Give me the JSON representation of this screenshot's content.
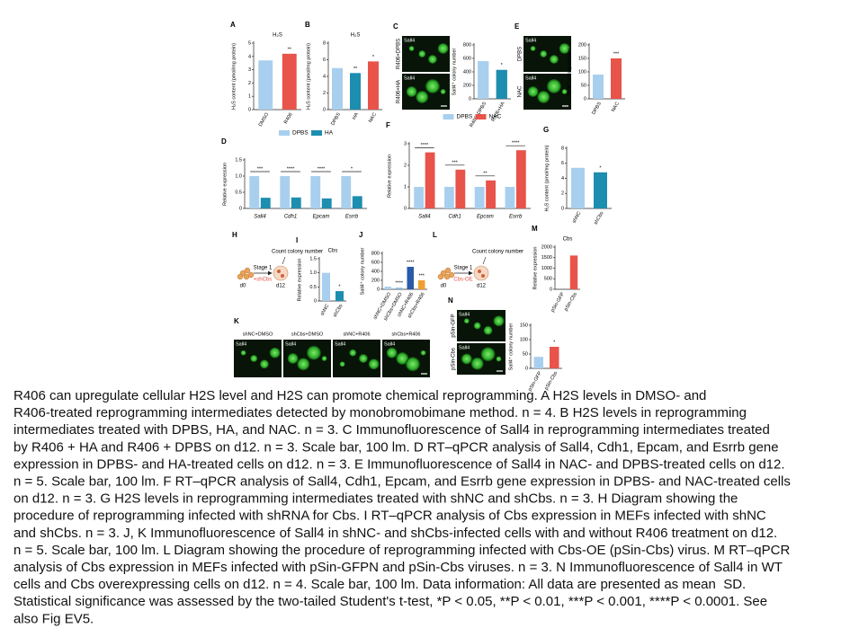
{
  "figure": {
    "panels": [
      {
        "kind": "bar",
        "letter": "A",
        "title": "H₂S",
        "ylabel": "H₂S content (pmol/mg protein)",
        "categories": [
          "DMSO",
          "R406"
        ],
        "values": [
          3.7,
          4.2
        ],
        "colors": [
          "#a9cfee",
          "#e8534a"
        ],
        "ylim": [
          0,
          5
        ],
        "yticks": [
          0,
          1,
          2,
          3,
          4,
          5
        ],
        "sig": [
          null,
          "**"
        ]
      },
      {
        "kind": "bar",
        "letter": "B",
        "title": "H₂S",
        "ylabel": "H₂S content (pmol/mg protein)",
        "categories": [
          "DPBS",
          "HA",
          "NAC"
        ],
        "values": [
          5.0,
          4.4,
          5.8
        ],
        "colors": [
          "#a9cfee",
          "#1d8db0",
          "#e8534a"
        ],
        "ylim": [
          0,
          8
        ],
        "yticks": [
          0,
          2,
          4,
          6,
          8
        ],
        "sig": [
          null,
          "**",
          "*"
        ]
      },
      {
        "kind": "images",
        "letter": "C",
        "images": [
          {
            "label": "R406+DPBS",
            "tag": "Sall4"
          },
          {
            "label": "R406+HA",
            "tag": "Sall4"
          }
        ]
      },
      {
        "kind": "bar",
        "ylabel": "Sall4⁺ colony number",
        "categories": [
          "R406+DPBS",
          "R406+HA"
        ],
        "values": [
          560,
          430
        ],
        "colors": [
          "#a9cfee",
          "#1d8db0"
        ],
        "ylim": [
          0,
          800
        ],
        "yticks": [
          0,
          200,
          400,
          600,
          800
        ],
        "sig": [
          null,
          "*"
        ]
      },
      {
        "kind": "images",
        "letter": "E",
        "images": [
          {
            "label": "DPBS",
            "tag": "Sall4"
          },
          {
            "label": "NAC",
            "tag": "Sall4"
          }
        ]
      },
      {
        "kind": "bar",
        "ylabel": "Sall4⁺ colony number",
        "categories": [
          "DPBS",
          "NAC"
        ],
        "values": [
          90,
          150
        ],
        "colors": [
          "#a9cfee",
          "#e8534a"
        ],
        "ylim": [
          0,
          200
        ],
        "yticks": [
          0,
          50,
          100,
          150,
          200
        ],
        "sig": [
          null,
          "***"
        ]
      },
      {
        "kind": "bar",
        "letter": "D",
        "ylabel": "Relative expression",
        "categories": [
          "Sall4",
          "Cdh1",
          "Epcam",
          "Esrrb"
        ],
        "series": [
          {
            "name": "DPBS",
            "color": "#a9cfee",
            "values": [
              1,
              1,
              1,
              1
            ]
          },
          {
            "name": "HA",
            "color": "#1d8db0",
            "values": [
              0.33,
              0.34,
              0.31,
              0.38
            ]
          }
        ],
        "ylim": [
          0,
          1.5
        ],
        "yticks": [
          0,
          0.5,
          {
            "value": 1,
            "label": "1.0"
          },
          1.5
        ],
        "sig": [
          "***",
          "****",
          "****",
          "*"
        ]
      },
      {
        "kind": "bar",
        "letter": "F",
        "ylabel": "Relative expression",
        "categories": [
          "Sall4",
          "Cdh1",
          "Epcam",
          "Esrrb"
        ],
        "series": [
          {
            "name": "DPBS",
            "color": "#a9cfee",
            "values": [
              1,
              1,
              1,
              1
            ]
          },
          {
            "name": "NAC",
            "color": "#e8534a",
            "values": [
              2.6,
              1.8,
              1.3,
              2.7
            ]
          }
        ],
        "ylim": [
          0,
          3
        ],
        "yticks": [
          0,
          1,
          2,
          3
        ],
        "sig": [
          "****",
          "***",
          "**",
          "****"
        ]
      },
      {
        "kind": "bar",
        "letter": "G",
        "ylabel": "H₂S content (pmol/mg protein)",
        "categories": [
          "shNC",
          "shCbs"
        ],
        "values": [
          5.4,
          4.8
        ],
        "colors": [
          "#a9cfee",
          "#1d8db0"
        ],
        "ylim": [
          0,
          8
        ],
        "yticks": [
          0,
          2,
          4,
          6,
          8
        ],
        "sig": [
          null,
          "*"
        ]
      },
      {
        "kind": "diagram",
        "letter": "H",
        "stage": "Stage 1",
        "treat": "+shCbs",
        "count": "Count colony number",
        "start": "d0",
        "end": "d12"
      },
      {
        "kind": "bar",
        "letter": "I",
        "title": "Cbs",
        "ylabel": "Relative expression",
        "categories": [
          "shNC",
          "shCbs"
        ],
        "values": [
          1.0,
          0.35
        ],
        "colors": [
          "#a9cfee",
          "#1d8db0"
        ],
        "ylim": [
          0,
          1.5
        ],
        "yticks": [
          0,
          0.5,
          {
            "value": 1,
            "label": "1.0"
          },
          1.5
        ],
        "sig": [
          null,
          "*"
        ]
      },
      {
        "kind": "bar",
        "letter": "J",
        "ylabel": "Sall4⁺ colony number",
        "categories": [
          "shNC+DMSO",
          "shCbs+DMSO",
          "shNC+R406",
          "shCbs+R406"
        ],
        "values": [
          60,
          35,
          500,
          200
        ],
        "colors": [
          "#a9cfee",
          "#7fb8e0",
          "#2a5aa8",
          "#f0a030"
        ],
        "ylim": [
          0,
          800
        ],
        "yticks": [
          0,
          200,
          400,
          600,
          800
        ],
        "sig": [
          null,
          "****",
          "****",
          "***"
        ]
      },
      {
        "kind": "diagram",
        "letter": "L",
        "stage": "Stage 1",
        "treat": "Cbs-OE",
        "count": "Count colony number",
        "start": "d0",
        "end": "d12"
      },
      {
        "kind": "bar",
        "letter": "M",
        "title": "Cbs",
        "ylabel": "Relative expression",
        "categories": [
          "pSin-GFP",
          "pSin-Cbs"
        ],
        "values": [
          1,
          1600
        ],
        "colors": [
          "#a9cfee",
          "#e8534a"
        ],
        "ylim": [
          0,
          2000
        ],
        "yticks": [
          0,
          500,
          1000,
          1500,
          2000
        ],
        "sig": [
          null,
          null
        ]
      },
      {
        "kind": "images",
        "letter": "K",
        "images": [
          {
            "label": "shNC+DMSO",
            "tag": "Sall4"
          },
          {
            "label": "shCbs+DMSO",
            "tag": "Sall4"
          },
          {
            "label": "shNC+R406",
            "tag": "Sall4"
          },
          {
            "label": "shCbs+R406",
            "tag": "Sall4"
          }
        ]
      },
      {
        "kind": "images",
        "letter": "N",
        "images": [
          {
            "label": "pSin-GFP",
            "tag": "Sall4"
          },
          {
            "label": "pSin-Cbs",
            "tag": "Sall4"
          }
        ]
      },
      {
        "kind": "bar",
        "ylabel": "Sall4⁺ colony number",
        "categories": [
          "pSin-GFP",
          "pSin-Cbs"
        ],
        "values": [
          40,
          75
        ],
        "colors": [
          "#a9cfee",
          "#e8534a"
        ],
        "ylim": [
          0,
          150
        ],
        "yticks": [
          0,
          50,
          100,
          150
        ],
        "sig": [
          null,
          "*"
        ]
      }
    ]
  },
  "caption": {
    "lines": [
      "R406 can upregulate cellular H2S level and H2S can promote chemical reprogramming. A H2S levels in DMSO- and",
      "R406-treated reprogramming intermediates detected by monobromobimane method. n = 4. B H2S levels in reprogramming",
      "intermediates treated with DPBS, HA, and NAC. n = 3. C Immunofluorescence of Sall4 in reprogramming intermediates treated",
      "by R406 + HA and R406 + DPBS on d12. n = 3. Scale bar, 100 lm. D RT–qPCR analysis of Sall4, Cdh1, Epcam, and Esrrb gene",
      "expression in DPBS- and HA-treated cells on d12. n = 3. E Immunofluorescence of Sall4 in NAC- and DPBS-treated cells on d12.",
      "n = 5. Scale bar, 100 lm. F RT–qPCR analysis of Sall4, Cdh1, Epcam, and Esrrb gene expression in DPBS- and NAC-treated cells",
      "on d12. n = 3. G H2S levels in reprogramming intermediates treated with shNC and shCbs. n = 3. H Diagram showing the",
      "procedure of reprogramming infected with shRNA for Cbs. I RT–qPCR analysis of Cbs expression in MEFs infected with shNC",
      "and shCbs. n = 3. J, K Immunofluorescence of Sall4 in shNC- and shCbs-infected cells with and without R406 treatment on d12.",
      "n = 5. Scale bar, 100 lm. L Diagram showing the procedure of reprogramming infected with Cbs-OE (pSin-Cbs) virus. M RT–qPCR",
      "analysis of Cbs expression in MEFs infected with pSin-GFPN and pSin-Cbs viruses. n = 3. N Immunofluorescence of Sall4 in WT",
      "cells and Cbs overexpressing cells on d12. n = 4. Scale bar, 100 lm. Data information: All data are presented as mean  SD.",
      "Statistical significance was assessed by the two-tailed Student's t-test, *P < 0.05, **P < 0.01, ***P < 0.001, ****P < 0.0001. See",
      "also Fig EV5."
    ]
  }
}
